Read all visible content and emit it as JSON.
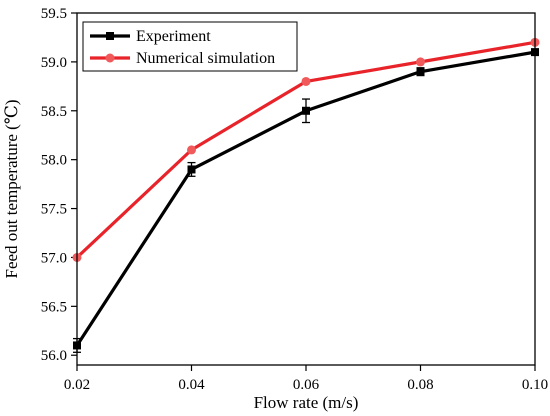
{
  "chart_data": {
    "type": "line",
    "title": "",
    "xlabel": "Flow rate (m/s)",
    "ylabel": "Feed out temperature (℃)",
    "x": [
      0.02,
      0.04,
      0.06,
      0.08,
      0.1
    ],
    "x_tick_labels": [
      "0.02",
      "0.04",
      "0.06",
      "0.08",
      "0.10"
    ],
    "y_tick_labels": [
      "56.0",
      "56.5",
      "57.0",
      "57.5",
      "58.0",
      "58.5",
      "59.0",
      "59.5"
    ],
    "xlim": [
      0.02,
      0.1
    ],
    "ylim": [
      55.9,
      59.5
    ],
    "y_ticks": [
      56.0,
      56.5,
      57.0,
      57.5,
      58.0,
      58.5,
      59.0,
      59.5
    ],
    "grid": false,
    "legend_position": "top-left",
    "series": [
      {
        "name": "Experiment",
        "color": "#000000",
        "marker": "square",
        "values": [
          56.1,
          57.9,
          58.5,
          58.9,
          59.1
        ],
        "error": [
          0.07,
          0.07,
          0.12,
          0.04,
          0.03
        ]
      },
      {
        "name": "Numerical simulation",
        "color": "#e8232a",
        "marker_color": "#f05a5a",
        "marker": "circle",
        "values": [
          57.0,
          58.1,
          58.8,
          59.0,
          59.2
        ]
      }
    ]
  }
}
